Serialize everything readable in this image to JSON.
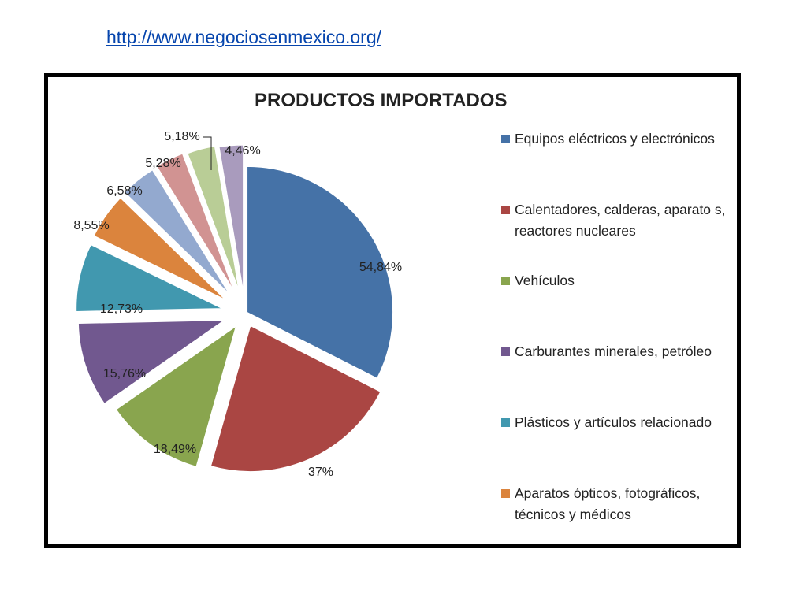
{
  "source_link": "http://www.negociosenmexico.org/",
  "chart_data": {
    "type": "pie",
    "title": "PRODUCTOS IMPORTADOS",
    "exploded": true,
    "legend_position": "right",
    "slices": [
      {
        "name": "Equipos eléctricos y electrónicos",
        "value": 54.84,
        "label": "54,84%",
        "color": "#4572a7"
      },
      {
        "name": "Calentadores, calderas, aparato s, reactores nucleares",
        "value": 37,
        "label": "37%",
        "color": "#aa4643"
      },
      {
        "name": "Vehículos",
        "value": 18.49,
        "label": "18,49%",
        "color": "#89a54e"
      },
      {
        "name": "Carburantes minerales, petróleo",
        "value": 15.76,
        "label": "15,76%",
        "color": "#71588f"
      },
      {
        "name": "Plásticos y artículos relacionado",
        "value": 12.73,
        "label": "12,73%",
        "color": "#4198af"
      },
      {
        "name": "Aparatos ópticos, fotográficos, técnicos y médicos",
        "value": 8.55,
        "label": "8,55%",
        "color": "#db843d"
      },
      {
        "name": "",
        "value": 6.58,
        "label": "6,58%",
        "color": "#93a9cf"
      },
      {
        "name": "",
        "value": 5.28,
        "label": "5,28%",
        "color": "#d19392"
      },
      {
        "name": "",
        "value": 5.18,
        "label": "5,18%",
        "color": "#b9cd96"
      },
      {
        "name": "",
        "value": 4.46,
        "label": "4,46%",
        "color": "#a99bbd"
      }
    ]
  }
}
